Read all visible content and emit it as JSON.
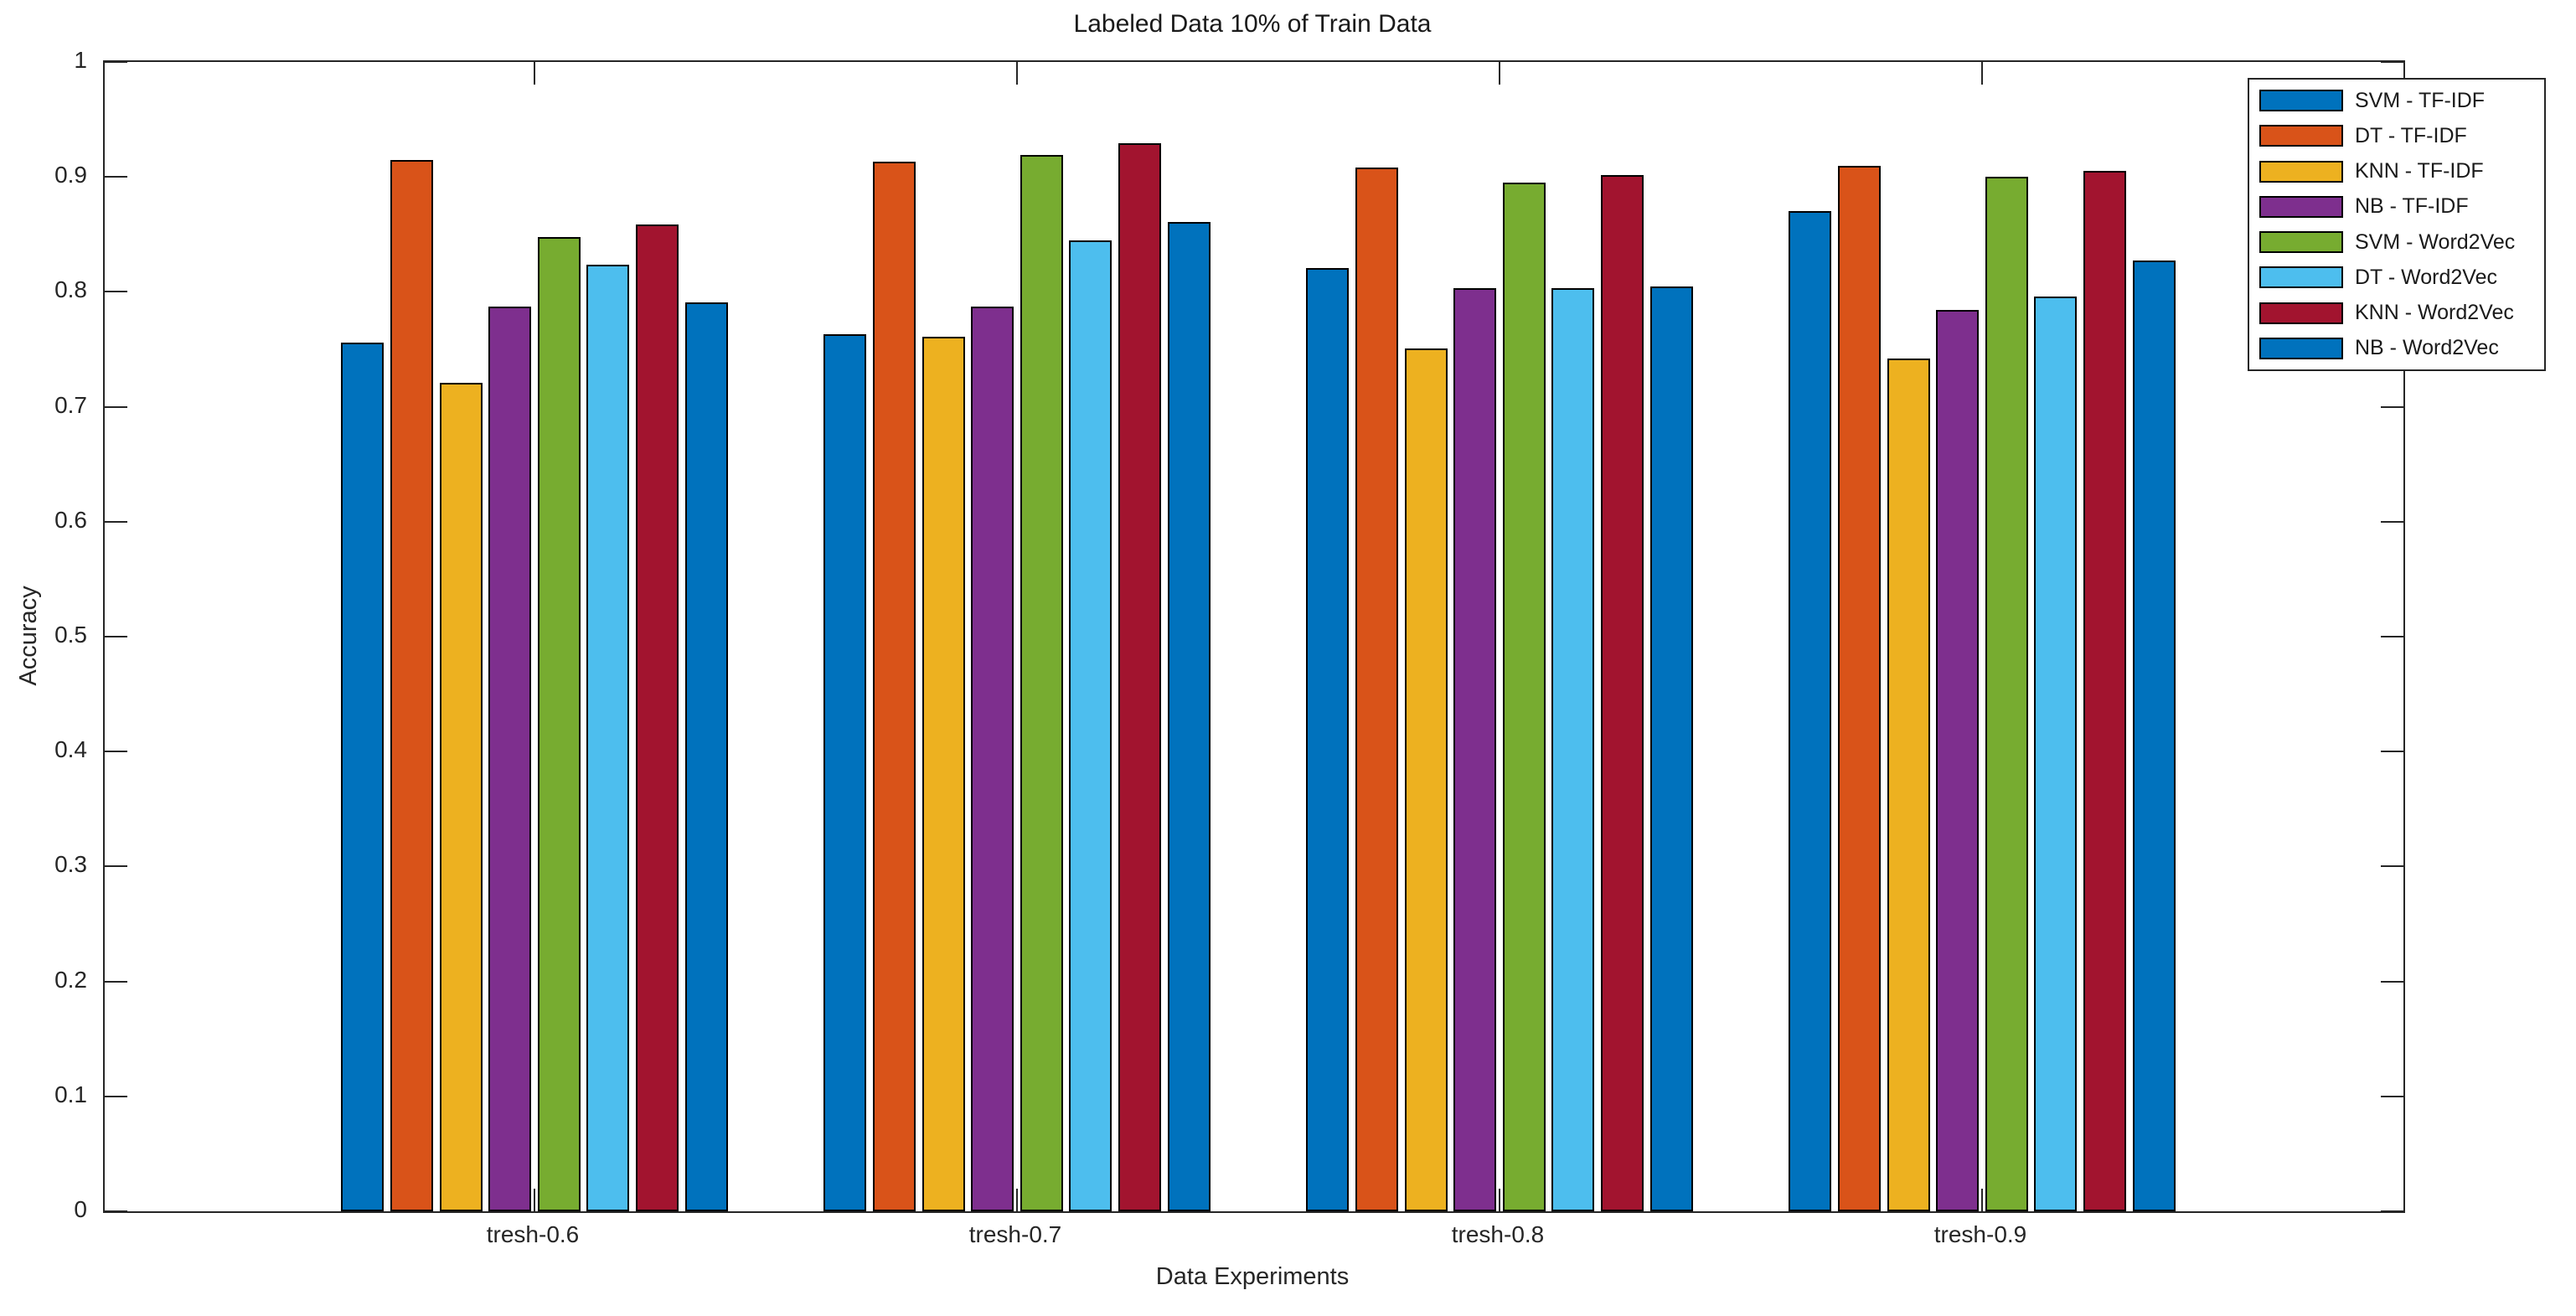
{
  "chart_data": {
    "type": "bar",
    "title": "Labeled Data 10% of Train Data",
    "xlabel": "Data Experiments",
    "ylabel": "Accuracy",
    "categories": [
      "tresh-0.6",
      "tresh-0.7",
      "tresh-0.8",
      "tresh-0.9"
    ],
    "series": [
      {
        "name": "SVM - TF-IDF",
        "color": "#0072BD",
        "values": [
          0.756,
          0.763,
          0.821,
          0.87
        ]
      },
      {
        "name": "DT - TF-IDF",
        "color": "#D95319",
        "values": [
          0.915,
          0.913,
          0.908,
          0.91
        ]
      },
      {
        "name": "KNN - TF-IDF",
        "color": "#EDB120",
        "values": [
          0.721,
          0.761,
          0.751,
          0.742
        ]
      },
      {
        "name": "NB - TF-IDF",
        "color": "#7E2F8E",
        "values": [
          0.787,
          0.787,
          0.803,
          0.784
        ]
      },
      {
        "name": "SVM - Word2Vec",
        "color": "#77AC30",
        "values": [
          0.848,
          0.919,
          0.895,
          0.9
        ]
      },
      {
        "name": "DT - Word2Vec",
        "color": "#4DBEEE",
        "values": [
          0.824,
          0.845,
          0.803,
          0.796
        ]
      },
      {
        "name": "KNN - Word2Vec",
        "color": "#A2142F",
        "values": [
          0.859,
          0.929,
          0.902,
          0.905
        ]
      },
      {
        "name": "NB - Word2Vec",
        "color": "#0072BD",
        "values": [
          0.791,
          0.861,
          0.805,
          0.827
        ]
      }
    ],
    "ylim": [
      0,
      1
    ],
    "yticks": [
      "0",
      "0.1",
      "0.2",
      "0.3",
      "0.4",
      "0.5",
      "0.6",
      "0.7",
      "0.8",
      "0.9",
      "1"
    ],
    "grid": false,
    "legend_position": "top-right",
    "bar_edge_color": "#000000",
    "axis_color": "#262626"
  }
}
